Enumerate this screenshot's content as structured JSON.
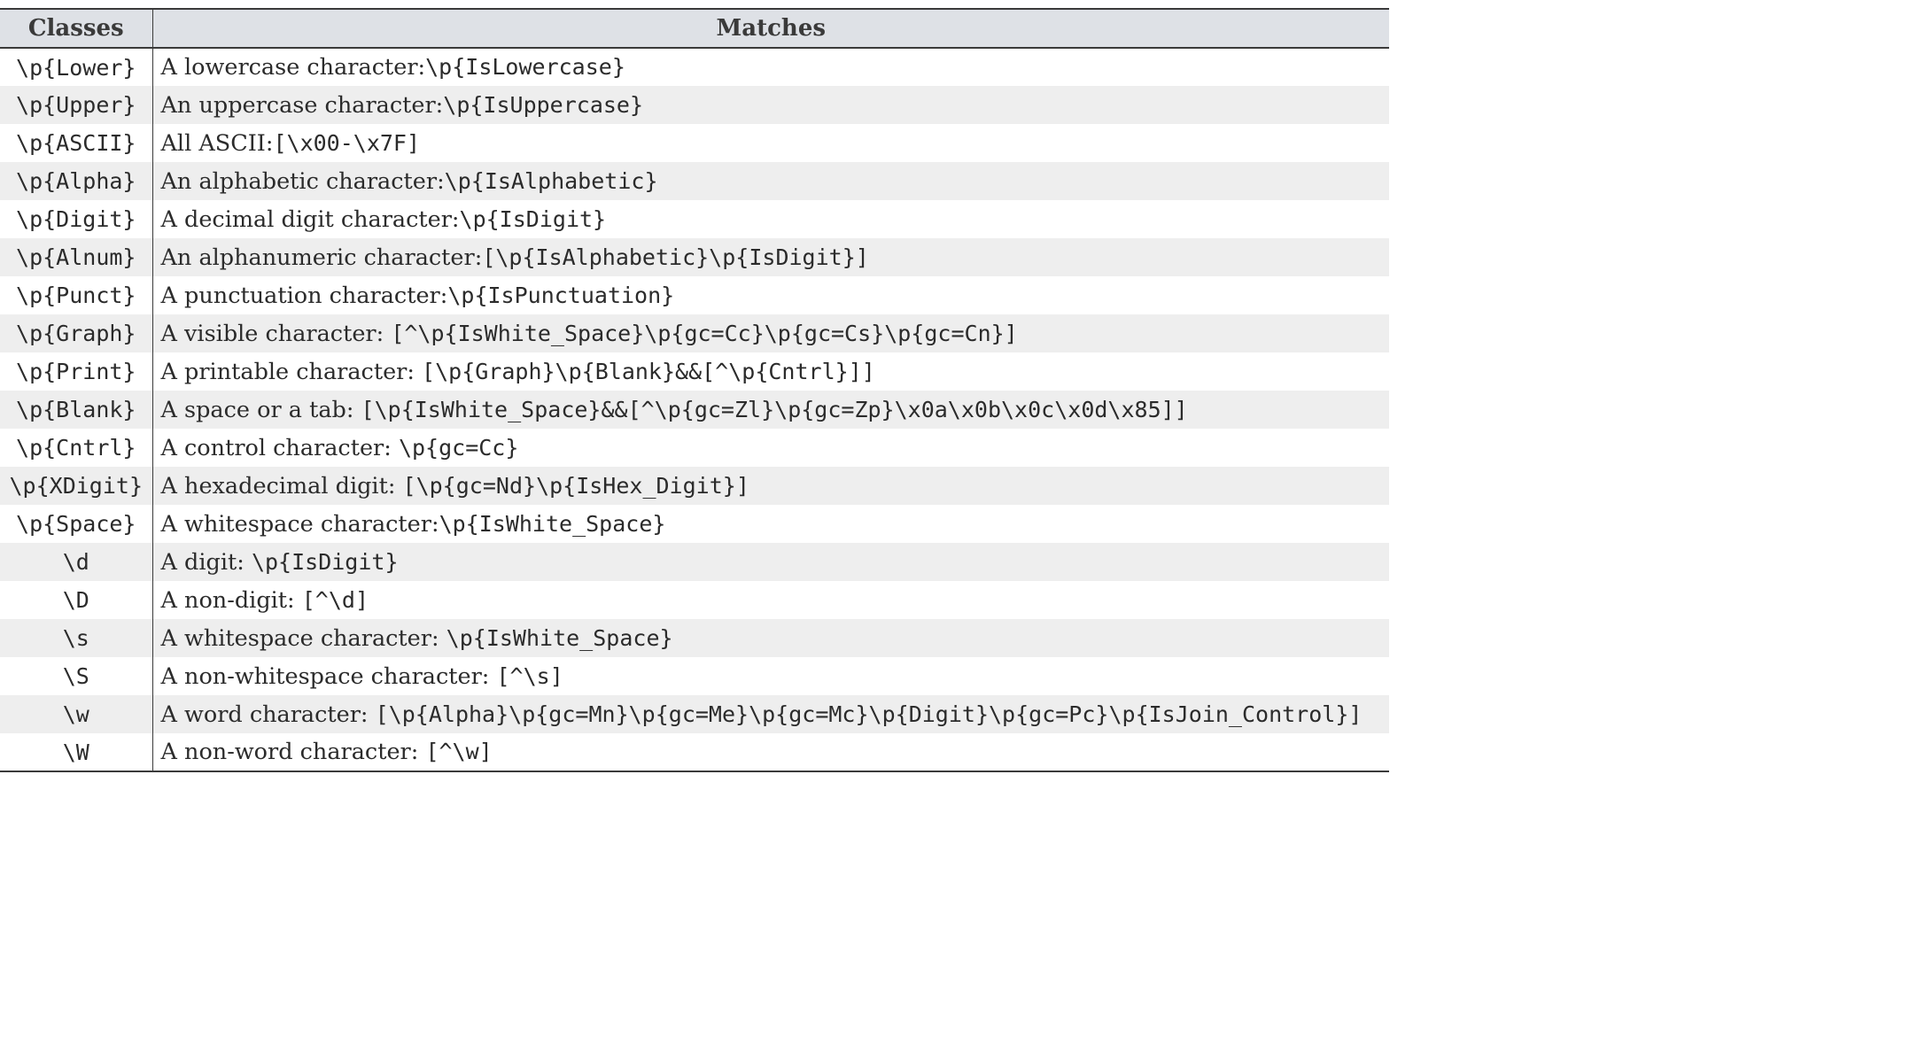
{
  "table": {
    "headers": {
      "classes": "Classes",
      "matches": "Matches"
    },
    "rows": [
      {
        "cls": "\\p{Lower}",
        "desc": "A lowercase character:",
        "code": "\\p{IsLowercase}"
      },
      {
        "cls": "\\p{Upper}",
        "desc": "An uppercase character:",
        "code": "\\p{IsUppercase}"
      },
      {
        "cls": "\\p{ASCII}",
        "desc": "All ASCII:",
        "code": "[\\x00-\\x7F]"
      },
      {
        "cls": "\\p{Alpha}",
        "desc": "An alphabetic character:",
        "code": "\\p{IsAlphabetic}"
      },
      {
        "cls": "\\p{Digit}",
        "desc": "A decimal digit character:",
        "code": "\\p{IsDigit}"
      },
      {
        "cls": "\\p{Alnum}",
        "desc": "An alphanumeric character:",
        "code": "[\\p{IsAlphabetic}\\p{IsDigit}]"
      },
      {
        "cls": "\\p{Punct}",
        "desc": "A punctuation character:",
        "code": "\\p{IsPunctuation}"
      },
      {
        "cls": "\\p{Graph}",
        "desc": "A visible character: ",
        "code": "[^\\p{IsWhite_Space}\\p{gc=Cc}\\p{gc=Cs}\\p{gc=Cn}]"
      },
      {
        "cls": "\\p{Print}",
        "desc": "A printable character: ",
        "code": "[\\p{Graph}\\p{Blank}&&[^\\p{Cntrl}]]"
      },
      {
        "cls": "\\p{Blank}",
        "desc": "A space or a tab: ",
        "code": "[\\p{IsWhite_Space}&&[^\\p{gc=Zl}\\p{gc=Zp}\\x0a\\x0b\\x0c\\x0d\\x85]]"
      },
      {
        "cls": "\\p{Cntrl}",
        "desc": "A control character: ",
        "code": "\\p{gc=Cc}"
      },
      {
        "cls": "\\p{XDigit}",
        "desc": "A hexadecimal digit: ",
        "code": "[\\p{gc=Nd}\\p{IsHex_Digit}]"
      },
      {
        "cls": "\\p{Space}",
        "desc": "A whitespace character:",
        "code": "\\p{IsWhite_Space}"
      },
      {
        "cls": "\\d",
        "desc": "A digit: ",
        "code": "\\p{IsDigit}"
      },
      {
        "cls": "\\D",
        "desc": "A non-digit: ",
        "code": "[^\\d]"
      },
      {
        "cls": "\\s",
        "desc": "A whitespace character: ",
        "code": "\\p{IsWhite_Space}"
      },
      {
        "cls": "\\S",
        "desc": "A non-whitespace character: ",
        "code": "[^\\s]"
      },
      {
        "cls": "\\w",
        "desc": "A word character: ",
        "code": "[\\p{Alpha}\\p{gc=Mn}\\p{gc=Me}\\p{gc=Mc}\\p{Digit}\\p{gc=Pc}\\p{IsJoin_Control}]"
      },
      {
        "cls": "\\W",
        "desc": "A non-word character: ",
        "code": "[^\\w]"
      }
    ]
  },
  "colors": {
    "header_bg": "#dee1e6",
    "stripe_bg": "#eeeeee",
    "text": "#2b2b2b",
    "rule": "#3a3a3a"
  }
}
